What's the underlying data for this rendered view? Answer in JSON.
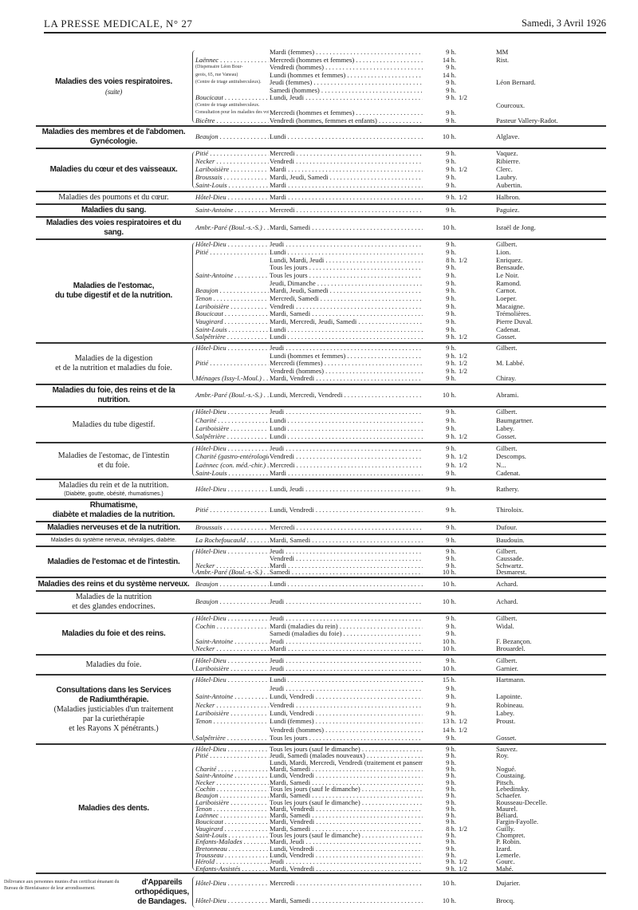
{
  "header": {
    "left": "LA PRESSE MEDICALE, N° 27",
    "right": "Samedi, 3 Avril 1926"
  },
  "sections": [
    {
      "label": [
        {
          "text": "Maladies des voies respiratoires."
        },
        {
          "text": ""
        },
        {
          "text": "(suite)",
          "style": "it"
        }
      ],
      "rows": [
        {
          "h": "",
          "d": "Mardi (femmes)",
          "t": "9 h.",
          "doc": "MM"
        },
        {
          "h": "Laënnec",
          "d": "Mercredi (hommes et femmes)",
          "t": "14 h.",
          "doc": "Rist."
        },
        {
          "hn": "(Dispensaire Léon Bour-",
          "d": "Vendredi (hommes)",
          "t": "9 h."
        },
        {
          "hn": "geois, 65, rue Vaneau)",
          "d": "Lundi (hommes et femmes)",
          "t": "14 h."
        },
        {
          "hn": "(Centre de triage antituberculeux).",
          "d": "Jeudi (femmes)",
          "t": "9 h.",
          "doc": "Léon Bernard."
        },
        {
          "h": "",
          "d": "Samedi (hommes)",
          "t": "9 h."
        },
        {
          "h": "Boucicaut",
          "d": "Lundi, Jeudi",
          "t": "9 h.",
          "f": "1/2"
        },
        {
          "hn": "(Centre de triage antituberculeux.",
          "d": "",
          "doc": "Courcoux."
        },
        {
          "hn": "Consultation pour les maladies des voies respiratoires",
          "d": "Mercredi (hommes et femmes)",
          "t": "9 h."
        },
        {
          "h": "Bicêtre",
          "d": "Vendredi (hommes, femmes et enfants)",
          "t": "9 h.",
          "doc": "Pasteur Vallery-Radot."
        }
      ]
    },
    {
      "label": [
        {
          "text": "Maladies des membres et de l'abdomen. Gynécologie."
        }
      ],
      "rows": [
        {
          "h": "Beaujon",
          "d": "Lundi",
          "t": "10 h.",
          "doc": "Alglave."
        }
      ]
    },
    {
      "label": [
        {
          "text": "Maladies du cœur et des vaisseaux."
        }
      ],
      "rows": [
        {
          "h": "Pitié",
          "d": "Mercredi",
          "t": "9 h.",
          "doc": "Vaquez."
        },
        {
          "h": "Necker",
          "d": "Vendredi",
          "t": "9 h.",
          "doc": "Ribierre."
        },
        {
          "h": "Lariboisière",
          "d": "Mardi",
          "t": "9 h.",
          "f": "1/2",
          "doc": "Clerc."
        },
        {
          "h": "Broussais",
          "d": "Mardi, Jeudi, Samedi",
          "t": "9 h.",
          "doc": "Laubry."
        },
        {
          "h": "Saint-Louis",
          "d": "Mardi",
          "t": "9 h.",
          "doc": "Aubertin."
        }
      ]
    },
    {
      "label": [
        {
          "text": "Maladies des poumons et du cœur.",
          "style": "reg"
        }
      ],
      "rows": [
        {
          "h": "Hôtel-Dieu",
          "d": "Mardi",
          "t": "9 h.",
          "f": "1/2",
          "doc": "Halbron."
        }
      ]
    },
    {
      "label": [
        {
          "text": "Maladies du sang."
        }
      ],
      "rows": [
        {
          "h": "Saint-Antoine",
          "d": "Mercredi",
          "t": "9 h.",
          "doc": "Paguiez."
        }
      ]
    },
    {
      "label": [
        {
          "text": "Maladies des voies respiratoires et du sang."
        }
      ],
      "rows": [
        {
          "h": "Ambr.-Paré (Boul.-s.-S.)",
          "d": "Mardi, Samedi",
          "t": "10 h.",
          "doc": "Israël de Jong."
        }
      ]
    },
    {
      "label": [
        {
          "text": "Maladies de l'estomac,"
        },
        {
          "text": "du tube digestif et de la nutrition."
        }
      ],
      "rows": [
        {
          "h": "Hôtel-Dieu",
          "d": "Jeudi",
          "t": "9 h.",
          "doc": "Gilbert."
        },
        {
          "h": "Pitié",
          "d": "Lundi",
          "t": "9 h.",
          "doc": "Lion."
        },
        {
          "h": "",
          "d": "Lundi, Mardi, Jeudi",
          "t": "8 h.",
          "f": "1/2",
          "doc": "Enriquez."
        },
        {
          "h": "",
          "d": "Tous les jours",
          "t": "9 h.",
          "doc": "Bensaude."
        },
        {
          "h": "Saint-Antoine",
          "d": "Tous les jours",
          "t": "9 h.",
          "doc": "Le Noir."
        },
        {
          "h": "",
          "d": "Jeudi, Dimanche",
          "t": "9 h.",
          "doc": "Ramond."
        },
        {
          "h": "Beaujon",
          "d": "Mardi, Jeudi, Samedi",
          "t": "9 h.",
          "doc": "Carnot."
        },
        {
          "h": "Tenon",
          "d": "Mercredi, Samedi",
          "t": "9 h.",
          "doc": "Loeper."
        },
        {
          "h": "Lariboisière",
          "d": "Vendredi",
          "t": "9 h.",
          "doc": "Macaigne."
        },
        {
          "h": "Boucicaut",
          "d": "Mardi, Samedi",
          "t": "9 h.",
          "doc": "Trémolières."
        },
        {
          "h": "Vaugirard",
          "d": "Mardi, Mercredi, Jeudi, Samedi",
          "t": "9 h.",
          "doc": "Pierre Duval."
        },
        {
          "h": "Saint-Louis",
          "d": "Lundi",
          "t": "9 h.",
          "doc": "Cadenat."
        },
        {
          "h": "Salpêtrière",
          "d": "Lundi",
          "t": "9 h.",
          "f": "1/2",
          "doc": "Gosset."
        }
      ]
    },
    {
      "label": [
        {
          "text": "Maladies de la digestion",
          "style": "reg"
        },
        {
          "text": "et de la nutrition et maladies du foie.",
          "style": "reg"
        }
      ],
      "rows": [
        {
          "h": "Hôtel-Dieu",
          "d": "Jeudi",
          "t": "9 h.",
          "doc": "Gilbert."
        },
        {
          "h": "",
          "d": "Lundi (hommes et femmes)",
          "t": "9 h.",
          "f": "1/2"
        },
        {
          "h": "Pitié",
          "d": "Mercredi (femmes)",
          "t": "9 h.",
          "f": "1/2",
          "doc": "M. Labbé."
        },
        {
          "h": "",
          "d": "Vendredi (hommes)",
          "t": "9 h.",
          "f": "1/2"
        },
        {
          "h": "Ménages (Issy-l.-Moul.)",
          "d": "Mardi, Vendredi",
          "t": "9 h.",
          "doc": "Chiray."
        }
      ]
    },
    {
      "label": [
        {
          "text": "Maladies du foie, des reins et de la nutrition."
        }
      ],
      "rows": [
        {
          "h": "Ambr.-Paré (Boul.-s.-S.)",
          "d": "Lundi, Mercredi, Vendredi",
          "t": "10 h.",
          "doc": "Abrami."
        }
      ]
    },
    {
      "label": [
        {
          "text": "Maladies du tube digestif.",
          "style": "reg"
        }
      ],
      "rows": [
        {
          "h": "Hôtel-Dieu",
          "d": "Jeudi",
          "t": "9 h.",
          "doc": "Gilbert."
        },
        {
          "h": "Charité",
          "d": "Lundi",
          "t": "9 h.",
          "doc": "Baumgartner."
        },
        {
          "h": "Lariboisière",
          "d": "Lundi",
          "t": "9 h.",
          "doc": "Labey."
        },
        {
          "h": "Salpêtrière",
          "d": "Lundi",
          "t": "9 h.",
          "f": "1/2",
          "doc": "Gosset."
        }
      ]
    },
    {
      "label": [
        {
          "text": "Maladies de l'estomac, de l'intestin",
          "style": "reg"
        },
        {
          "text": "et du foie.",
          "style": "reg"
        }
      ],
      "rows": [
        {
          "h": "Hôtel-Dieu",
          "d": "Jeudi",
          "t": "9 h.",
          "doc": "Gilbert."
        },
        {
          "h": "Charité (gastro-entérologie)",
          "d": "Vendredi",
          "t": "9 h.",
          "f": "1/2",
          "doc": "Descomps."
        },
        {
          "h": "Laënnec (con. méd.-chir.)",
          "d": "Mercredi",
          "t": "9 h.",
          "f": "1/2",
          "doc": "N..."
        },
        {
          "h": "Saint-Louis",
          "d": "Mardi",
          "t": "9 h.",
          "doc": "Cadenat."
        }
      ]
    },
    {
      "label": [
        {
          "text": "Maladies du rein et de la nutrition.",
          "style": "reg"
        },
        {
          "text": "(Diabète, goutte, obésité, rhumatismes.)",
          "style": "small"
        }
      ],
      "rows": [
        {
          "h": "Hôtel-Dieu",
          "d": "Lundi, Jeudi",
          "t": "9 h.",
          "doc": "Rathery."
        }
      ]
    },
    {
      "label": [
        {
          "text": "Rhumatisme,"
        },
        {
          "text": "diabète et maladies de la nutrition."
        }
      ],
      "rows": [
        {
          "h": "Pitié",
          "d": "Lundi, Vendredi",
          "t": "9 h.",
          "doc": "Thiroloix."
        }
      ]
    },
    {
      "label": [
        {
          "text": "Maladies nerveuses et de la nutrition."
        }
      ],
      "rows": [
        {
          "h": "Broussais",
          "d": "Mercredi",
          "t": "9 h.",
          "doc": "Dufour."
        }
      ]
    },
    {
      "label": [
        {
          "text": "Maladies du système nerveux, névralgies, diabète.",
          "style": "small"
        }
      ],
      "rows": [
        {
          "h": "La Rochefoucauld",
          "d": "Mardi, Samedi",
          "t": "9 h.",
          "doc": "Baudouin."
        }
      ]
    },
    {
      "label": [
        {
          "text": "Maladies de l'estomac et de l'intestin."
        }
      ],
      "rows": [
        {
          "h": "Hôtel-Dieu",
          "d": "Jeudi",
          "t": "9 h.",
          "doc": "Gilbert."
        },
        {
          "h": "",
          "d": "Vendredi",
          "t": "9 h.",
          "doc": "Caussade."
        },
        {
          "h": "Necker",
          "d": "Mardi",
          "t": "9 h.",
          "doc": "Schwartz."
        },
        {
          "h": "Ambr.-Paré (Boul.-s.-S.)",
          "d": "Samedi",
          "t": "10 h.",
          "doc": "Desmarest."
        }
      ]
    },
    {
      "label": [
        {
          "text": "Maladies des reins et du système nerveux."
        }
      ],
      "rows": [
        {
          "h": "Beaujon",
          "d": "Lundi",
          "t": "10 h.",
          "doc": "Achard."
        }
      ]
    },
    {
      "label": [
        {
          "text": "Maladies de la nutrition",
          "style": "reg"
        },
        {
          "text": "et des glandes endocrines.",
          "style": "reg"
        }
      ],
      "rows": [
        {
          "h": "Beaujon",
          "d": "Jeudi",
          "t": "10 h.",
          "doc": "Achard."
        }
      ]
    },
    {
      "label": [
        {
          "text": "Maladies du foie et des reins."
        }
      ],
      "rows": [
        {
          "h": "Hôtel-Dieu",
          "d": "Jeudi",
          "t": "9 h.",
          "doc": "Gilbert."
        },
        {
          "h": "Cochin",
          "d": "Mardi (maladies du rein)",
          "t": "9 h.",
          "doc": "Widal."
        },
        {
          "h": "",
          "d": "Samedi (maladies du foie)",
          "t": "9 h."
        },
        {
          "h": "Saint-Antoine",
          "d": "Jeudi",
          "t": "10 h.",
          "doc": "F. Bezançon."
        },
        {
          "h": "Necker",
          "d": "Mardi",
          "t": "10 h.",
          "doc": "Brouardel."
        }
      ]
    },
    {
      "label": [
        {
          "text": "Maladies du foie.",
          "style": "reg"
        }
      ],
      "rows": [
        {
          "h": "Hôtel-Dieu",
          "d": "Jeudi",
          "t": "9 h.",
          "doc": "Gilbert."
        },
        {
          "h": "Lariboisière",
          "d": "Jeudi",
          "t": "10 h.",
          "doc": "Garnier."
        }
      ]
    },
    {
      "label": [
        {
          "text": "Consultations dans les Services"
        },
        {
          "text": "de Radiumthérapie."
        },
        {
          "text": "(Maladies justiciables d'un traitement",
          "style": "reg"
        },
        {
          "text": "par la curiethérapie",
          "style": "reg"
        },
        {
          "text": "et les Rayons X pénétrants.)",
          "style": "reg"
        }
      ],
      "rows": [
        {
          "h": "Hôtel-Dieu",
          "d": "Lundi",
          "t": "15 h.",
          "doc": "Hartmann."
        },
        {
          "h": "",
          "d": "Jeudi",
          "t": "9 h."
        },
        {
          "h": "Saint-Antoine",
          "d": "Lundi, Vendredi",
          "t": "9 h.",
          "doc": "Lapointe."
        },
        {
          "h": "Necker",
          "d": "Vendredi",
          "t": "9 h.",
          "doc": "Robineau."
        },
        {
          "h": "Lariboisière",
          "d": "Lundi, Vendredi",
          "t": "9 h.",
          "doc": "Labey."
        },
        {
          "h": "Tenon",
          "d": "Lundi (femmes)",
          "t": "13 h.",
          "f": "1/2",
          "doc": "Proust."
        },
        {
          "h": "",
          "d": "Vendredi (hommes)",
          "t": "14 h.",
          "f": "1/2"
        },
        {
          "h": "Salpêtrière",
          "d": "Tous les jours",
          "t": "9 h.",
          "doc": "Gosset."
        }
      ]
    },
    {
      "label": [
        {
          "text": "Maladies des dents."
        }
      ],
      "rows": [
        {
          "h": "Hôtel-Dieu",
          "d": "Tous les jours (sauf le dimanche)",
          "t": "9 h.",
          "doc": "Sauvez."
        },
        {
          "h": "Pitié",
          "d": "Jeudi, Samedi (malades nouveaux)",
          "t": "9 h.",
          "doc": "Roy."
        },
        {
          "h": "",
          "d": "Lundi, Mardi, Mercredi, Vendredi (traitement et pansement)",
          "t": "9 h."
        },
        {
          "h": "Charité",
          "d": "Mardi, Samedi",
          "t": "9 h.",
          "doc": "Nogué."
        },
        {
          "h": "Saint-Antoine",
          "d": "Lundi, Vendredi",
          "t": "9 h.",
          "doc": "Coustaing."
        },
        {
          "h": "Necker",
          "d": "Mardi, Samedi",
          "t": "9 h.",
          "doc": "Pitsch."
        },
        {
          "h": "Cochin",
          "d": "Tous les jours (sauf le dimanche)",
          "t": "9 h.",
          "doc": "Lebedinsky."
        },
        {
          "h": "Beaujon",
          "d": "Mardi, Samedi",
          "t": "9 h.",
          "doc": "Schaefer."
        },
        {
          "h": "Lariboisière",
          "d": "Tous les jours (sauf le dimanche)",
          "t": "9 h.",
          "doc": "Rousseau-Decelle."
        },
        {
          "h": "Tenon",
          "d": "Mardi, Vendredi",
          "t": "9 h.",
          "doc": "Maurel."
        },
        {
          "h": "Laënnec",
          "d": "Mardi, Samedi",
          "t": "9 h.",
          "doc": "Béliard."
        },
        {
          "h": "Boucicaut",
          "d": "Mardi, Vendredi",
          "t": "9 h.",
          "doc": "Fargin-Fayolle."
        },
        {
          "h": "Vaugirard",
          "d": "Mardi, Samedi",
          "t": "8 h.",
          "f": "1/2",
          "doc": "Guilly."
        },
        {
          "h": "Saint-Louis",
          "d": "Tous les jours (sauf le dimanche)",
          "t": "9 h.",
          "doc": "Chompret."
        },
        {
          "h": "Enfants-Malades",
          "d": "Mardi, Jeudi",
          "t": "9 h.",
          "doc": "P. Robin."
        },
        {
          "h": "Bretonneau",
          "d": "Lundi, Vendredi",
          "t": "9 h.",
          "doc": "Izard."
        },
        {
          "h": "Trousseau",
          "d": "Lundi, Vendredi",
          "t": "9 h.",
          "doc": "Lemerle."
        },
        {
          "h": "Hérold",
          "d": "Jeudi",
          "t": "9 h.",
          "f": "1/2",
          "doc": "Gourc."
        },
        {
          "h": "Enfants-Assistés",
          "d": "Mardi, Vendredi",
          "t": "9 h.",
          "f": "1/2",
          "doc": "Mahé."
        }
      ]
    },
    {
      "note": "Délivrance aux personnes munies d'un certificat émanant du Bureau de Bienfaisance de leur arrondissement.",
      "label": [
        {
          "text": "d'Appareils"
        },
        {
          "text": "orthopédiques,"
        },
        {
          "text": "de Bandages."
        }
      ],
      "rows": [
        {
          "h": "Hôtel-Dieu",
          "d": "Mercredi",
          "t": "10 h.",
          "doc": "Dujarier."
        },
        {
          "h": "Hôtel-Dieu",
          "d": "Mardi, Samedi",
          "t": "10 h.",
          "doc": "Brocq."
        }
      ]
    }
  ]
}
